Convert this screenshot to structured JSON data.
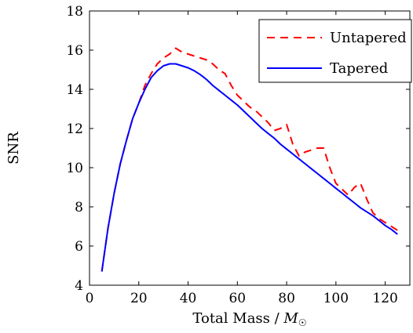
{
  "chart_data": {
    "type": "line",
    "xlabel": "Total Mass / M☉",
    "xlabel_parts": {
      "prefix": "Total Mass / ",
      "symbol": "M",
      "subscript": "☉"
    },
    "ylabel": "SNR",
    "xlim": [
      0,
      130
    ],
    "ylim": [
      4,
      18
    ],
    "xticks": [
      0,
      20,
      40,
      60,
      80,
      100,
      120
    ],
    "yticks": [
      4,
      6,
      8,
      10,
      12,
      14,
      16,
      18
    ],
    "grid": false,
    "legend_position": "top-right",
    "series": [
      {
        "name": "Untapered",
        "color": "#ff0000",
        "style": "dashed",
        "x": [
          5,
          7.5,
          10,
          12.5,
          15,
          17.5,
          20,
          22.5,
          25,
          27.5,
          30,
          32.5,
          35,
          37.5,
          40,
          42.5,
          45,
          47.5,
          50,
          52.5,
          55,
          57.5,
          60,
          62.5,
          65,
          67.5,
          70,
          72.5,
          75,
          77.5,
          80,
          82.5,
          85,
          87.5,
          90,
          92.5,
          95,
          97.5,
          100,
          102.5,
          105,
          107.5,
          110,
          112.5,
          115,
          117.5,
          120,
          122.5,
          125
        ],
        "y": [
          4.7,
          6.9,
          8.7,
          10.2,
          11.4,
          12.5,
          13.3,
          14.2,
          14.8,
          15.3,
          15.6,
          15.8,
          16.1,
          15.9,
          15.8,
          15.7,
          15.6,
          15.5,
          15.3,
          15.0,
          14.8,
          14.2,
          13.7,
          13.4,
          13.1,
          12.9,
          12.6,
          12.3,
          11.9,
          12.0,
          12.2,
          11.2,
          10.6,
          10.8,
          10.9,
          11.0,
          11.0,
          10.0,
          9.2,
          8.9,
          8.6,
          9.0,
          9.2,
          8.4,
          7.7,
          7.4,
          7.2,
          7.0,
          6.8
        ]
      },
      {
        "name": "Tapered",
        "color": "#0000ff",
        "style": "solid",
        "x": [
          5,
          7.5,
          10,
          12.5,
          15,
          17.5,
          20,
          22.5,
          25,
          27.5,
          30,
          32.5,
          35,
          37.5,
          40,
          42.5,
          45,
          47.5,
          50,
          52.5,
          55,
          57.5,
          60,
          62.5,
          65,
          67.5,
          70,
          72.5,
          75,
          77.5,
          80,
          82.5,
          85,
          87.5,
          90,
          92.5,
          95,
          97.5,
          100,
          102.5,
          105,
          107.5,
          110,
          112.5,
          115,
          117.5,
          120,
          122.5,
          125
        ],
        "y": [
          4.7,
          6.9,
          8.7,
          10.2,
          11.4,
          12.5,
          13.3,
          14.0,
          14.6,
          14.95,
          15.2,
          15.3,
          15.3,
          15.2,
          15.1,
          14.95,
          14.75,
          14.5,
          14.2,
          13.95,
          13.7,
          13.45,
          13.2,
          12.9,
          12.6,
          12.3,
          12.0,
          11.75,
          11.5,
          11.2,
          10.95,
          10.7,
          10.45,
          10.2,
          9.95,
          9.7,
          9.45,
          9.2,
          8.95,
          8.7,
          8.45,
          8.2,
          7.95,
          7.75,
          7.55,
          7.3,
          7.05,
          6.85,
          6.6
        ]
      }
    ]
  }
}
